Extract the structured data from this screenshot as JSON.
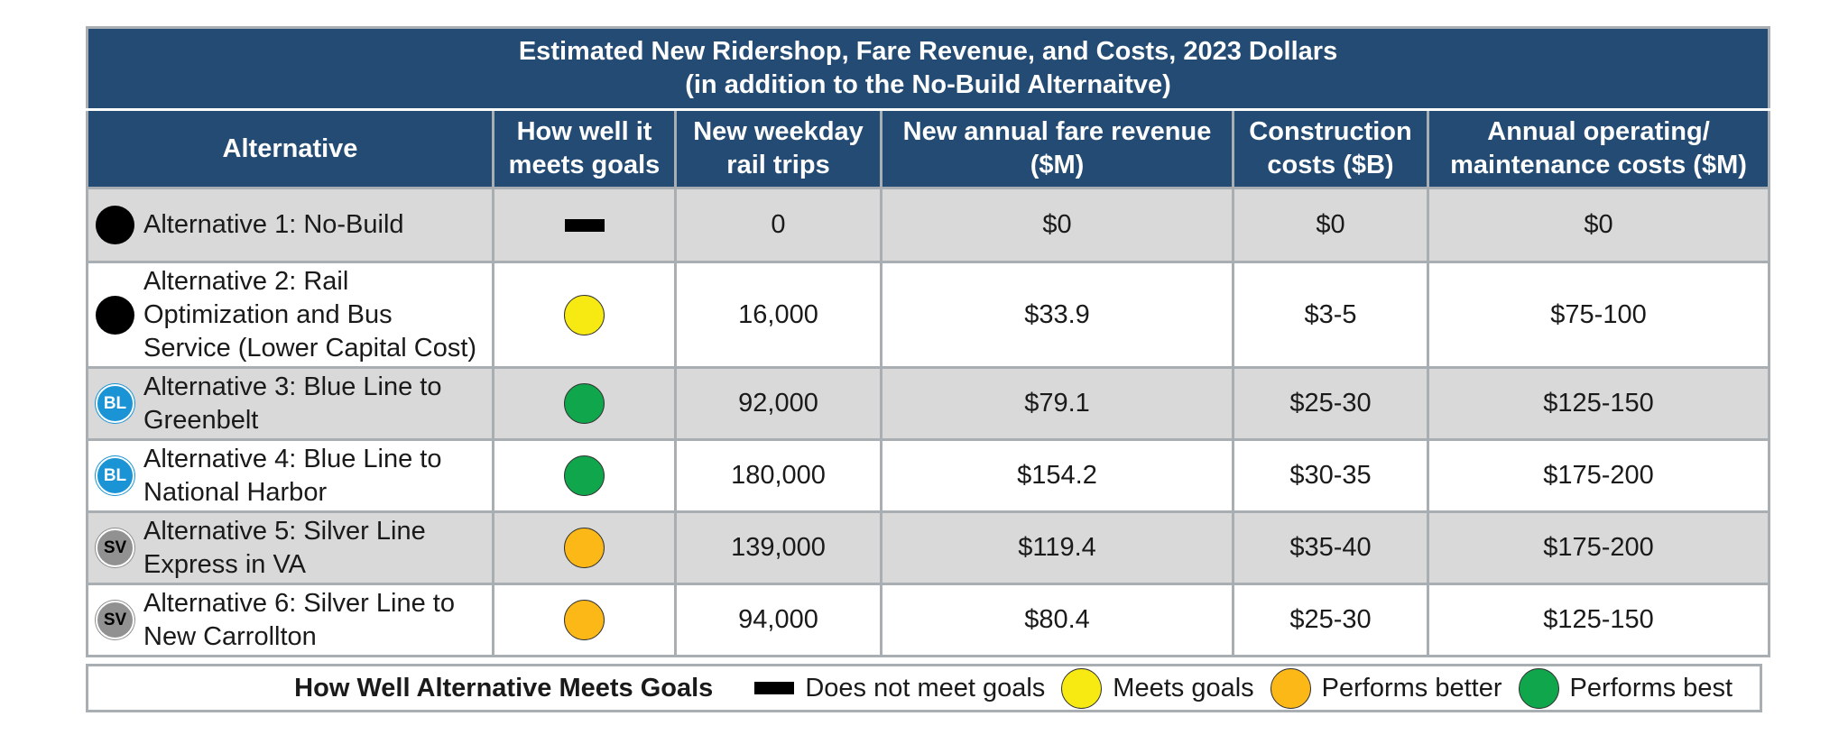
{
  "title": {
    "line1": "Estimated New Ridershop, Fare Revenue, and Costs, 2023 Dollars",
    "line2": "(in addition to the No-Build Alternaitve)"
  },
  "headers": {
    "alternative": "Alternative",
    "goals_1": "How well it",
    "goals_2": "meets goals",
    "trips_1": "New weekday",
    "trips_2": "rail trips",
    "fare_1": "New annual fare revenue",
    "fare_2": "($M)",
    "construction_1": "Construction",
    "construction_2": "costs ($B)",
    "om_1": "Annual operating/",
    "om_2": "maintenance costs ($M)"
  },
  "rows": [
    {
      "badge": "",
      "badge_type": "black",
      "alt_lines": [
        "Alternative 1: No-Build"
      ],
      "goal": "dash",
      "trips": "0",
      "fare": "$0",
      "construction": "$0",
      "om": "$0"
    },
    {
      "badge": "",
      "badge_type": "black",
      "alt_lines": [
        "Alternative 2: Rail",
        "Optimization and Bus",
        "Service (Lower Capital Cost)"
      ],
      "goal": "yellow",
      "trips": "16,000",
      "fare": "$33.9",
      "construction": "$3-5",
      "om": "$75-100"
    },
    {
      "badge": "BL",
      "badge_type": "bl",
      "alt_lines": [
        "Alternative 3: Blue Line to",
        "Greenbelt"
      ],
      "goal": "green",
      "trips": "92,000",
      "fare": "$79.1",
      "construction": "$25-30",
      "om": "$125-150"
    },
    {
      "badge": "BL",
      "badge_type": "bl",
      "alt_lines": [
        "Alternative 4: Blue Line to",
        "National Harbor"
      ],
      "goal": "green",
      "trips": "180,000",
      "fare": "$154.2",
      "construction": "$30-35",
      "om": "$175-200"
    },
    {
      "badge": "SV",
      "badge_type": "sv",
      "alt_lines": [
        "Alternative 5: Silver Line",
        "Express in VA"
      ],
      "goal": "orange",
      "trips": "139,000",
      "fare": "$119.4",
      "construction": "$35-40",
      "om": "$175-200"
    },
    {
      "badge": "SV",
      "badge_type": "sv",
      "alt_lines": [
        "Alternative 6: Silver Line to",
        "New Carrollton"
      ],
      "goal": "orange",
      "trips": "94,000",
      "fare": "$80.4",
      "construction": "$25-30",
      "om": "$125-150"
    }
  ],
  "legend": {
    "title": "How Well Alternative Meets Goals",
    "items": [
      {
        "symbol": "dash",
        "label": "Does not meet goals"
      },
      {
        "symbol": "yellow",
        "label": "Meets goals"
      },
      {
        "symbol": "orange",
        "label": "Performs better"
      },
      {
        "symbol": "green",
        "label": "Performs best"
      }
    ]
  },
  "colors": {
    "header_bg": "#234b73",
    "row_shade": "#d9d9d9",
    "yellow": "#f7ea12",
    "orange": "#fbb817",
    "green": "#0fa64c",
    "blue_line": "#1a94d4",
    "silver_line": "#919191"
  }
}
